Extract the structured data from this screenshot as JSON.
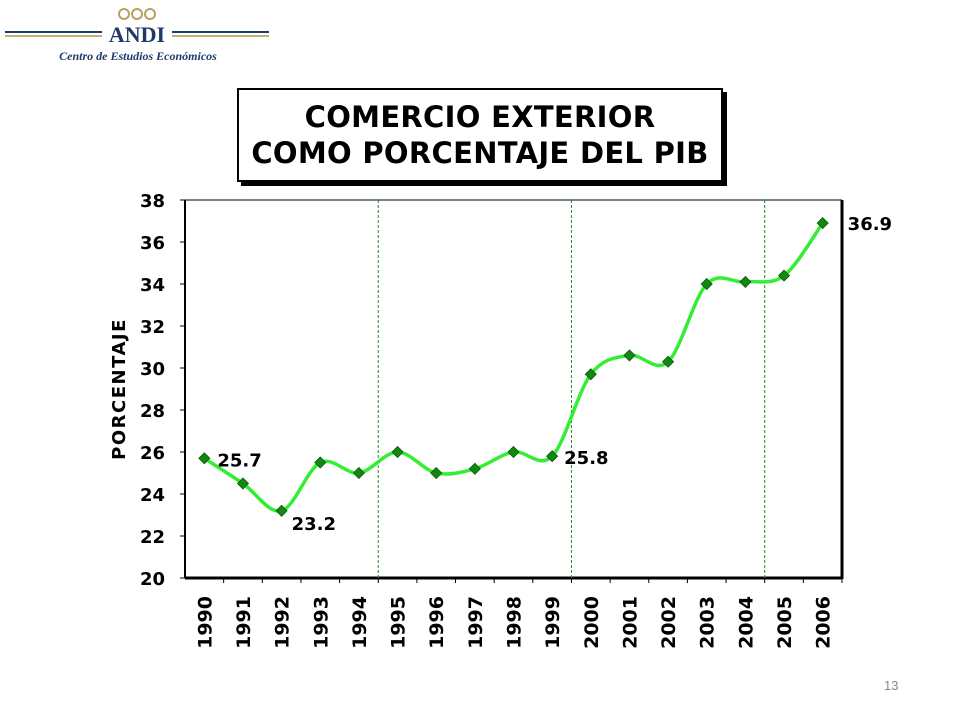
{
  "logo": {
    "brand": "ANDI",
    "subtitle": "Centro de Estudios Económicos"
  },
  "page_number": "13",
  "chart_data": {
    "type": "line",
    "title": [
      "COMERCIO EXTERIOR",
      "COMO PORCENTAJE DEL PIB"
    ],
    "xlabel": "",
    "ylabel": "PORCENTAJE",
    "categories": [
      "1990",
      "1991",
      "1992",
      "1993",
      "1994",
      "1995",
      "1996",
      "1997",
      "1998",
      "1999",
      "2000",
      "2001",
      "2002",
      "2003",
      "2004",
      "2005",
      "2006"
    ],
    "values": [
      25.7,
      24.5,
      23.2,
      25.5,
      25.0,
      26.0,
      25.0,
      25.2,
      26.0,
      25.8,
      29.7,
      30.6,
      30.3,
      34.0,
      34.1,
      34.4,
      36.9
    ],
    "ylim": [
      20,
      38
    ],
    "yticks": [
      20,
      22,
      24,
      26,
      28,
      30,
      32,
      34,
      36,
      38
    ],
    "vertical_separators_between": [
      [
        "1994",
        "1995"
      ],
      [
        "1999",
        "2000"
      ],
      [
        "2004",
        "2005"
      ]
    ],
    "data_labels": [
      {
        "category": "1990",
        "text": "25.7"
      },
      {
        "category": "1992",
        "text": "23.2"
      },
      {
        "category": "1999",
        "text": "25.8"
      },
      {
        "category": "2006",
        "text": "36.9"
      }
    ],
    "line_color": "#33ee33",
    "marker_color": "#118811",
    "separator_color": "#228822",
    "grid": false,
    "legend": "none"
  }
}
